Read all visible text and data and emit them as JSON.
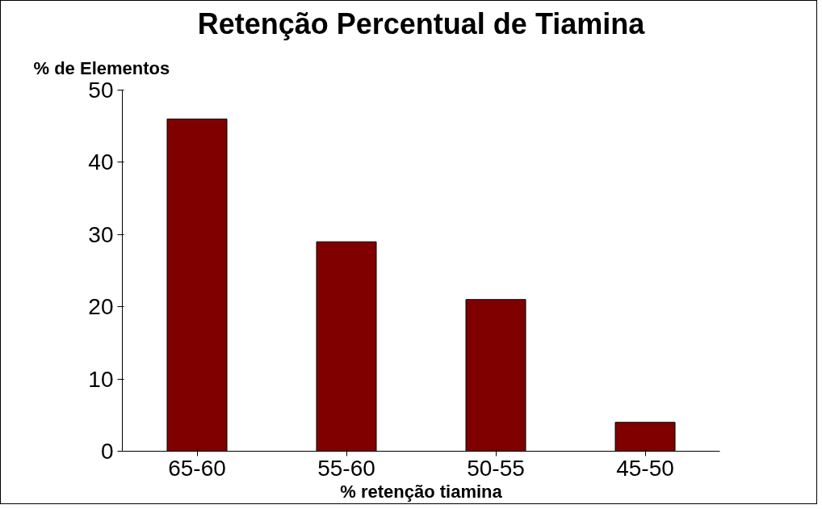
{
  "chart_data": {
    "type": "bar",
    "title": "Retenção Percentual de Tiamina",
    "ylabel": "% de Elementos",
    "xlabel": "% retenção tiamina",
    "categories": [
      "65-60",
      "55-60",
      "50-55",
      "45-50"
    ],
    "values": [
      46,
      29,
      21,
      4
    ],
    "color": "#800000",
    "ylim": [
      0,
      50
    ],
    "yticks": [
      0,
      10,
      20,
      30,
      40,
      50
    ],
    "grid": false
  }
}
